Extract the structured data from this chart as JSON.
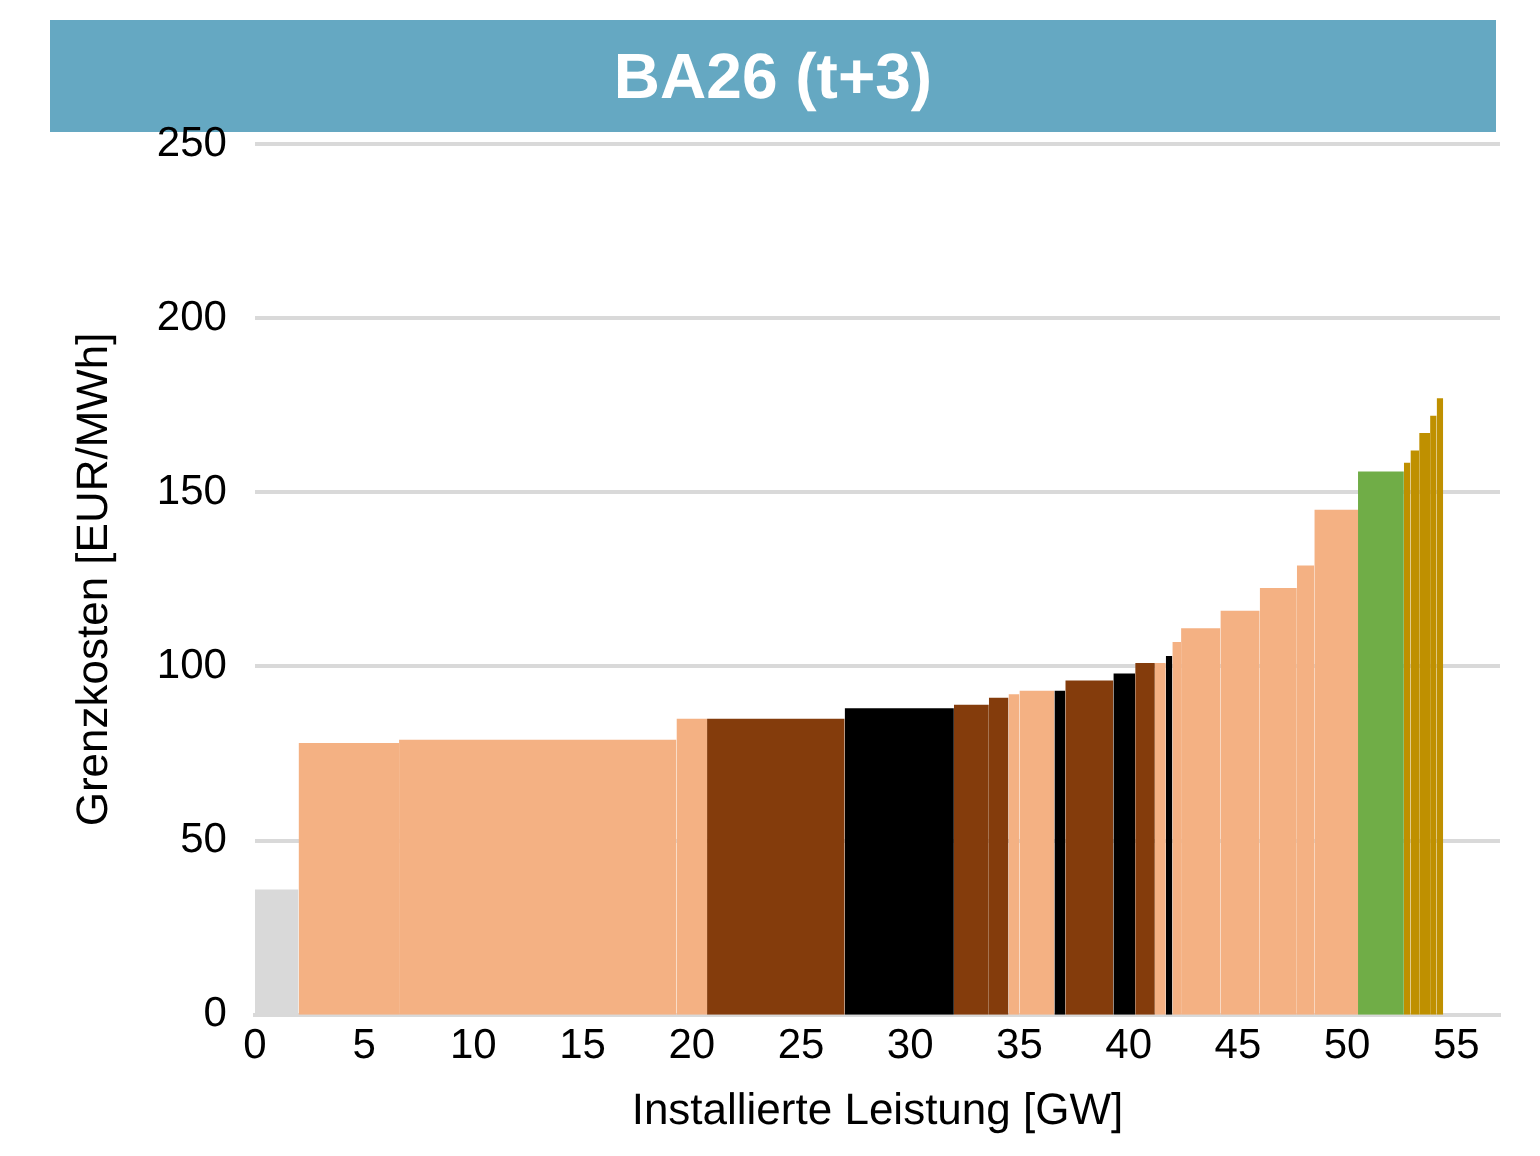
{
  "chart_data": {
    "type": "histogram",
    "title": "BA26 (t+3)",
    "xlabel": "Installierte Leistung [GW]",
    "ylabel": "Grenzkosten [EUR/MWh]",
    "bins": [
      0,
      2.0,
      6.6,
      19.3,
      20.7,
      27.0,
      32.0,
      33.6,
      34.5,
      35.0,
      36.6,
      37.1,
      39.3,
      40.3,
      41.2,
      41.7,
      42.0,
      42.4,
      44.2,
      46.0,
      47.7,
      48.5,
      50.5,
      52.6,
      52.9,
      53.3,
      53.8,
      54.1,
      54.4
    ],
    "values": [
      36,
      78,
      79,
      85,
      85,
      88,
      89,
      91,
      92,
      93,
      93,
      96,
      98,
      101,
      101,
      103,
      107,
      111,
      116,
      122.5,
      129,
      145,
      156,
      158.5,
      162,
      167,
      172,
      177
    ],
    "colors": [
      "#d9d9d9",
      "#f4b183",
      "#f4b183",
      "#f4b183",
      "#843c0c",
      "#000000",
      "#843c0c",
      "#843c0c",
      "#f4b183",
      "#f4b183",
      "#000000",
      "#843c0c",
      "#000000",
      "#843c0c",
      "#f4b183",
      "#000000",
      "#f4b183",
      "#f4b183",
      "#f4b183",
      "#f4b183",
      "#f4b183",
      "#f4b183",
      "#70ad47",
      "#bf9000",
      "#bf9000",
      "#bf9000",
      "#bf9000",
      "#bf9000"
    ],
    "xlim": [
      0,
      57
    ],
    "xticks": [
      0,
      5,
      10,
      15,
      20,
      25,
      30,
      35,
      40,
      45,
      50,
      55
    ],
    "ylim": [
      0,
      250
    ],
    "yticks": [
      0,
      50,
      100,
      150,
      200,
      250
    ],
    "grid": "y",
    "legend": false
  }
}
